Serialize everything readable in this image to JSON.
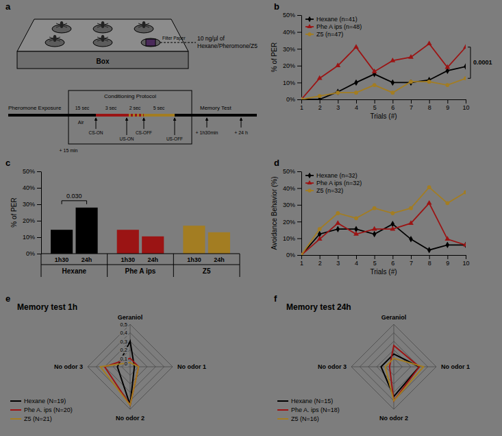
{
  "diagram": {
    "panel": "a",
    "odor_label": [
      "10 ng/µl of",
      "Hexane/Pheromone/Z5"
    ],
    "filter_paper": "Filter Paper",
    "box": "Box",
    "protocol_title": "Conditioning Protocol",
    "exposure": "Pheromone Exposure",
    "memory_test": "Memory Test",
    "durations": [
      "15 sec",
      "3 sec",
      "2 sec",
      "5 sec"
    ],
    "air": "Air",
    "events": [
      "CS-ON",
      "US-ON",
      "CS-OFF",
      "US-OFF"
    ],
    "test_times": [
      "+ 1h30min",
      "+ 24 h"
    ],
    "pre_delay": "+ 15 min"
  },
  "chart_data": [
    {
      "panel": "b",
      "type": "line",
      "y_label": "% of PER",
      "x_label": "Trials (#)",
      "x": [
        1,
        2,
        3,
        4,
        5,
        6,
        7,
        8,
        9,
        10
      ],
      "xlim": [
        1,
        10
      ],
      "xticks": [
        1,
        2,
        3,
        4,
        5,
        6,
        7,
        8,
        9,
        10
      ],
      "ylim": [
        0,
        50
      ],
      "yticks": [
        {
          "value": 0,
          "label": "0%"
        },
        {
          "value": 10,
          "label": "10%"
        },
        {
          "value": 20,
          "label": "20%"
        },
        {
          "value": 30,
          "label": "30%"
        },
        {
          "value": 40,
          "label": "40%"
        },
        {
          "value": 50,
          "label": "50%"
        }
      ],
      "legend": "upper left",
      "series": [
        {
          "name": "Hexane (n=41)",
          "color": "#000000",
          "marker": "diamond",
          "values": [
            0,
            0,
            4.5,
            10,
            15,
            10,
            10,
            11.5,
            17,
            19.5
          ]
        },
        {
          "name": "Phe A ips (n=48)",
          "color": "#9b1414",
          "marker": "triangle",
          "values": [
            0,
            12.5,
            20,
            31,
            16.5,
            23,
            25,
            33,
            19,
            31
          ]
        },
        {
          "name": "Z5 (n=47)",
          "color": "#a37d22",
          "marker": "circle",
          "values": [
            0,
            2,
            4,
            4,
            8.5,
            4,
            10.5,
            10.5,
            8.5,
            12.5
          ]
        }
      ],
      "annotations": [
        {
          "text": "0.0001"
        }
      ]
    },
    {
      "panel": "c",
      "type": "bar",
      "y_label": "% of PER",
      "categories": [
        "1h30",
        "24h"
      ],
      "ylim": [
        0,
        50
      ],
      "yticks": [
        {
          "value": 0,
          "label": "0%"
        },
        {
          "value": 10,
          "label": "10%"
        },
        {
          "value": 20,
          "label": "20%"
        },
        {
          "value": 30,
          "label": "30%"
        },
        {
          "value": 40,
          "label": "40%"
        },
        {
          "value": 50,
          "label": "50%"
        }
      ],
      "series": [
        {
          "name": "Hexane",
          "color": "#000000",
          "values": [
            14.5,
            28
          ]
        },
        {
          "name": "Phe A ips",
          "color": "#9b1414",
          "values": [
            14.5,
            10.5
          ]
        },
        {
          "name": "Z5",
          "color": "#a37d22",
          "values": [
            17,
            13
          ]
        }
      ],
      "annotations": [
        {
          "text": "0.030"
        }
      ]
    },
    {
      "panel": "d",
      "type": "line",
      "y_label": "Avoidance Behavior (%)",
      "x_label": "Trials (#)",
      "x": [
        1,
        2,
        3,
        4,
        5,
        6,
        7,
        8,
        9,
        10
      ],
      "xlim": [
        1,
        10
      ],
      "xticks": [
        1,
        2,
        3,
        4,
        5,
        6,
        7,
        8,
        9,
        10
      ],
      "ylim": [
        0,
        50
      ],
      "yticks": [
        {
          "value": 0,
          "label": "0%"
        },
        {
          "value": 10,
          "label": "10%"
        },
        {
          "value": 20,
          "label": "20%"
        },
        {
          "value": 30,
          "label": "30%"
        },
        {
          "value": 40,
          "label": "40%"
        },
        {
          "value": 50,
          "label": "50%"
        }
      ],
      "legend": "upper left",
      "series": [
        {
          "name": "Hexane (n=32)",
          "color": "#000000",
          "marker": "diamond",
          "values": [
            0,
            12.5,
            15.5,
            15.5,
            12.5,
            18.5,
            9.5,
            3,
            6,
            6
          ]
        },
        {
          "name": "Phe A ips (n=32)",
          "color": "#9b1414",
          "marker": "triangle",
          "values": [
            0,
            9.5,
            19,
            12.5,
            15.5,
            15.5,
            19,
            31,
            9.5,
            6
          ]
        },
        {
          "name": "Z5 (n=32)",
          "color": "#a37d22",
          "marker": "circle",
          "values": [
            0,
            15.5,
            25,
            22,
            28,
            25,
            28,
            40.5,
            31,
            37.5
          ]
        }
      ]
    },
    {
      "panel": "e",
      "type": "radar",
      "title": "Memory test 1h",
      "categories": [
        "Geraniol",
        "No odor 1",
        "No odor 2",
        "No odor 3"
      ],
      "ylim": [
        0,
        0.5
      ],
      "yticks": [
        0,
        {
          "value": 0.1,
          "label": "0,1"
        },
        {
          "value": 0.2,
          "label": "0,2"
        },
        {
          "value": 0.3,
          "label": "0,3"
        },
        {
          "value": 0.4,
          "label": "0,4"
        },
        {
          "value": 0.5,
          "label": "0,5"
        }
      ],
      "legend": "lower left",
      "series": [
        {
          "name": "Hexane (N=19)",
          "color": "#000000",
          "values": [
            0.3,
            0.05,
            0.45,
            0.15
          ]
        },
        {
          "name": "Phe A. ips (N=20)",
          "color": "#9b1414",
          "values": [
            0.1,
            0.1,
            0.45,
            0.3
          ]
        },
        {
          "name": "Z5 (N=21)",
          "color": "#a37d22",
          "values": [
            0.05,
            0.1,
            0.45,
            0.35
          ]
        }
      ]
    },
    {
      "panel": "f",
      "type": "radar",
      "title": "Memory test 24h",
      "categories": [
        "Geraniol",
        "No odor 1",
        "No odor 2",
        "No odor 3"
      ],
      "ylim": [
        0,
        0.5
      ],
      "yticks": [
        0,
        0.1,
        0.2,
        0.3,
        0.4,
        0.5
      ],
      "tick_labels": false,
      "legend": "lower left",
      "series": [
        {
          "name": "Hexane (N=15)",
          "color": "#000000",
          "values": [
            0.15,
            0.3,
            0.35,
            0.15
          ]
        },
        {
          "name": "Phe A. ips (N=18)",
          "color": "#9b1414",
          "values": [
            0.25,
            0.3,
            0.4,
            0.05
          ]
        },
        {
          "name": "Z5 (N=16)",
          "color": "#a37d22",
          "values": [
            0.1,
            0.35,
            0.4,
            0.1
          ]
        }
      ]
    }
  ]
}
